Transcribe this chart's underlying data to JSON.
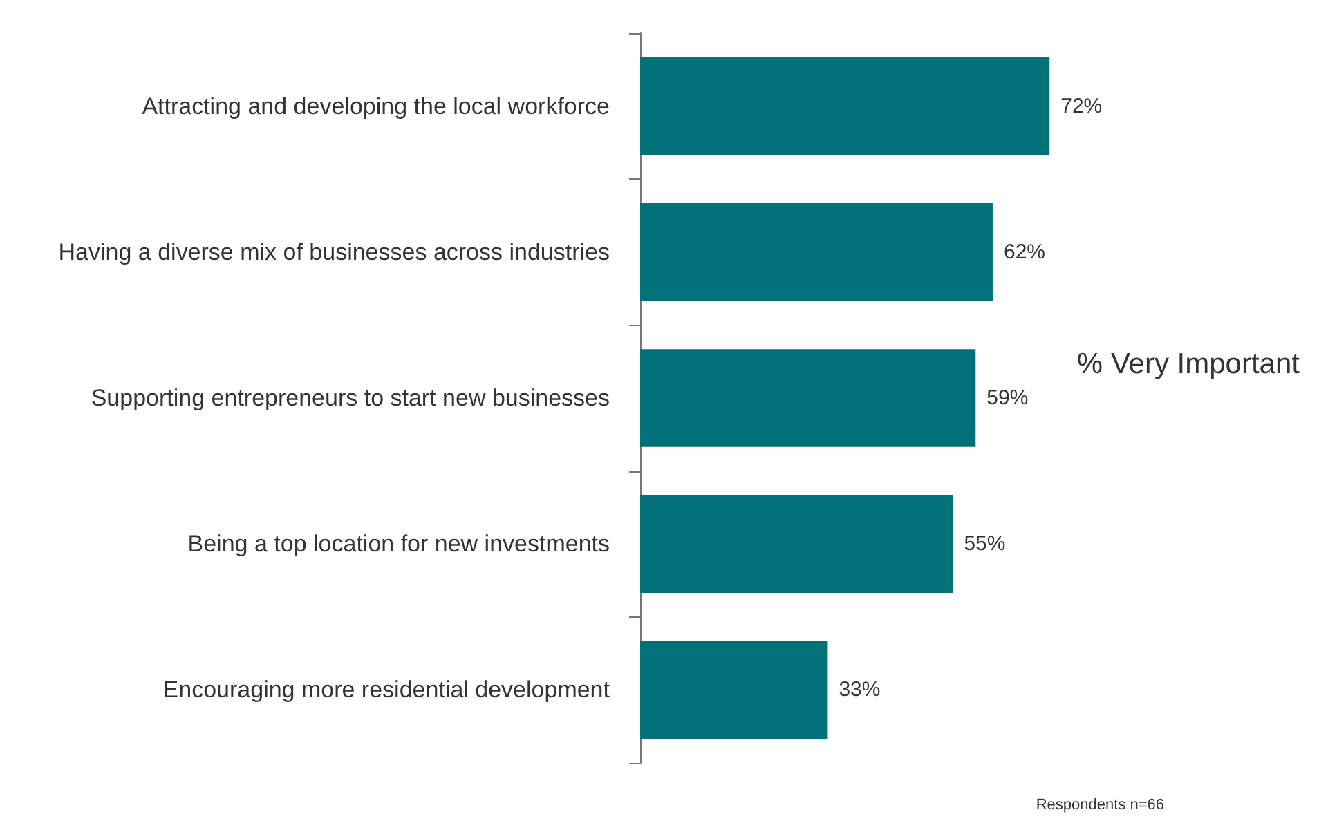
{
  "chart_data": {
    "type": "bar",
    "orientation": "horizontal",
    "categories": [
      "Attracting and developing the local workforce",
      "Having a diverse mix of businesses across industries",
      "Supporting entrepreneurs to start new businesses",
      "Being a top location for new investments",
      "Encouraging more residential development"
    ],
    "values": [
      72,
      62,
      59,
      55,
      33
    ],
    "color": "#007178",
    "value_labels": [
      "72%",
      "62%",
      "59%",
      "55%",
      "33%"
    ],
    "annotations": [
      "% Very Important",
      "Respondents n=66"
    ]
  }
}
